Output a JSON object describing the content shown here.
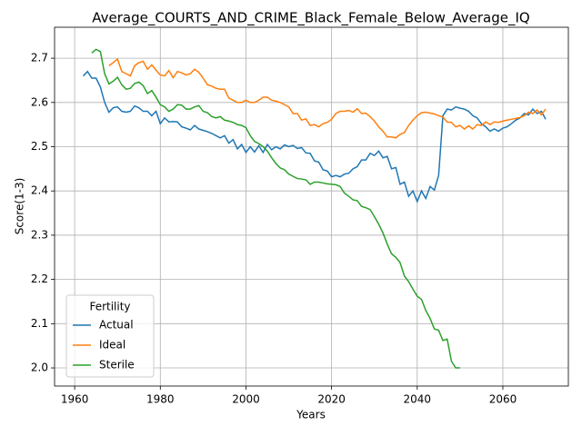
{
  "chart_data": {
    "type": "line",
    "title": "Average_COURTS_AND_CRIME_Black_Female_Below_Average_IQ",
    "x_label": "Years",
    "y_label": "Score(1-3)",
    "legend_title": "Fertility",
    "legend_loc": "lower left",
    "grid": true,
    "x": [
      1962,
      1963,
      1964,
      1965,
      1966,
      1967,
      1968,
      1969,
      1970,
      1971,
      1972,
      1973,
      1974,
      1975,
      1976,
      1977,
      1978,
      1979,
      1980,
      1981,
      1982,
      1983,
      1984,
      1985,
      1986,
      1987,
      1988,
      1989,
      1990,
      1991,
      1992,
      1993,
      1994,
      1995,
      1996,
      1997,
      1998,
      1999,
      2000,
      2001,
      2002,
      2003,
      2004,
      2005,
      2006,
      2007,
      2008,
      2009,
      2010,
      2011,
      2012,
      2013,
      2014,
      2015,
      2016,
      2017,
      2018,
      2019,
      2020,
      2021,
      2022,
      2023,
      2024,
      2025,
      2026,
      2027,
      2028,
      2029,
      2030,
      2031,
      2032,
      2033,
      2034,
      2035,
      2036,
      2037,
      2038,
      2039,
      2040,
      2041,
      2042,
      2043,
      2044,
      2045,
      2046,
      2047,
      2048,
      2049,
      2050,
      2051,
      2052,
      2053,
      2054,
      2055,
      2056,
      2057,
      2058,
      2059,
      2060,
      2061,
      2062,
      2063,
      2064,
      2065,
      2066,
      2067,
      2068,
      2069,
      2070
    ],
    "series": [
      {
        "name": "Actual",
        "color": "#1f77b4",
        "values": [
          2.66,
          2.67,
          2.655,
          2.655,
          2.635,
          2.6,
          2.578,
          2.588,
          2.59,
          2.58,
          2.578,
          2.58,
          2.592,
          2.588,
          2.58,
          2.58,
          2.57,
          2.58,
          2.552,
          2.565,
          2.556,
          2.557,
          2.556,
          2.545,
          2.542,
          2.538,
          2.548,
          2.54,
          2.537,
          2.534,
          2.53,
          2.525,
          2.52,
          2.525,
          2.508,
          2.516,
          2.495,
          2.505,
          2.487,
          2.5,
          2.488,
          2.502,
          2.487,
          2.505,
          2.493,
          2.5,
          2.495,
          2.504,
          2.5,
          2.503,
          2.496,
          2.498,
          2.486,
          2.485,
          2.468,
          2.465,
          2.448,
          2.445,
          2.432,
          2.435,
          2.432,
          2.438,
          2.44,
          2.45,
          2.455,
          2.47,
          2.47,
          2.485,
          2.48,
          2.49,
          2.475,
          2.478,
          2.45,
          2.453,
          2.415,
          2.42,
          2.388,
          2.4,
          2.376,
          2.4,
          2.383,
          2.41,
          2.402,
          2.435,
          2.57,
          2.585,
          2.583,
          2.59,
          2.587,
          2.585,
          2.58,
          2.57,
          2.565,
          2.552,
          2.545,
          2.535,
          2.54,
          2.535,
          2.542,
          2.545,
          2.552,
          2.56,
          2.565,
          2.575,
          2.572,
          2.585,
          2.575,
          2.58,
          2.562
        ]
      },
      {
        "name": "Ideal",
        "color": "#ff7f0e",
        "values": [
          null,
          null,
          null,
          null,
          null,
          null,
          2.683,
          2.69,
          2.698,
          2.67,
          2.665,
          2.66,
          2.683,
          2.69,
          2.693,
          2.675,
          2.685,
          2.673,
          2.662,
          2.66,
          2.672,
          2.656,
          2.67,
          2.667,
          2.662,
          2.665,
          2.675,
          2.668,
          2.655,
          2.64,
          2.637,
          2.632,
          2.63,
          2.63,
          2.61,
          2.605,
          2.6,
          2.6,
          2.605,
          2.6,
          2.6,
          2.605,
          2.612,
          2.612,
          2.605,
          2.603,
          2.6,
          2.595,
          2.59,
          2.575,
          2.575,
          2.56,
          2.563,
          2.548,
          2.55,
          2.545,
          2.552,
          2.555,
          2.562,
          2.575,
          2.58,
          2.58,
          2.582,
          2.578,
          2.586,
          2.575,
          2.576,
          2.568,
          2.558,
          2.545,
          2.535,
          2.522,
          2.522,
          2.52,
          2.528,
          2.532,
          2.548,
          2.56,
          2.57,
          2.577,
          2.578,
          2.576,
          2.574,
          2.57,
          2.567,
          2.556,
          2.555,
          2.545,
          2.548,
          2.54,
          2.547,
          2.54,
          2.55,
          2.548,
          2.556,
          2.55,
          2.556,
          2.555,
          2.558,
          2.56,
          2.562,
          2.564,
          2.566,
          2.57,
          2.578,
          2.575,
          2.583,
          2.572,
          2.585
        ]
      },
      {
        "name": "Sterile",
        "color": "#2ca02c",
        "values": [
          null,
          null,
          2.712,
          2.72,
          2.715,
          2.665,
          2.642,
          2.648,
          2.657,
          2.64,
          2.63,
          2.632,
          2.643,
          2.646,
          2.638,
          2.62,
          2.627,
          2.612,
          2.595,
          2.59,
          2.58,
          2.585,
          2.595,
          2.594,
          2.585,
          2.585,
          2.59,
          2.593,
          2.58,
          2.577,
          2.568,
          2.565,
          2.568,
          2.56,
          2.558,
          2.555,
          2.55,
          2.548,
          2.543,
          2.525,
          2.512,
          2.507,
          2.5,
          2.49,
          2.475,
          2.462,
          2.452,
          2.448,
          2.438,
          2.433,
          2.428,
          2.427,
          2.425,
          2.415,
          2.42,
          2.42,
          2.418,
          2.416,
          2.415,
          2.414,
          2.41,
          2.395,
          2.388,
          2.38,
          2.378,
          2.365,
          2.362,
          2.358,
          2.342,
          2.325,
          2.305,
          2.28,
          2.258,
          2.25,
          2.238,
          2.208,
          2.195,
          2.178,
          2.162,
          2.155,
          2.13,
          2.112,
          2.088,
          2.085,
          2.062,
          2.065,
          2.015,
          2.0,
          2.0,
          null,
          null,
          null,
          null,
          null,
          null,
          null,
          null,
          null,
          null,
          null,
          null,
          null,
          null,
          null,
          null,
          null,
          null,
          null,
          null
        ]
      }
    ],
    "xlim": [
      1955.3,
      2075.3
    ],
    "xticks": [
      1960,
      1980,
      2000,
      2020,
      2040,
      2060
    ],
    "ylim": [
      1.959,
      2.77
    ],
    "yticks": [
      {
        "value": 2,
        "label": "2.0"
      },
      2.1,
      2.2,
      2.3,
      2.4,
      2.5,
      2.6,
      2.7
    ]
  }
}
